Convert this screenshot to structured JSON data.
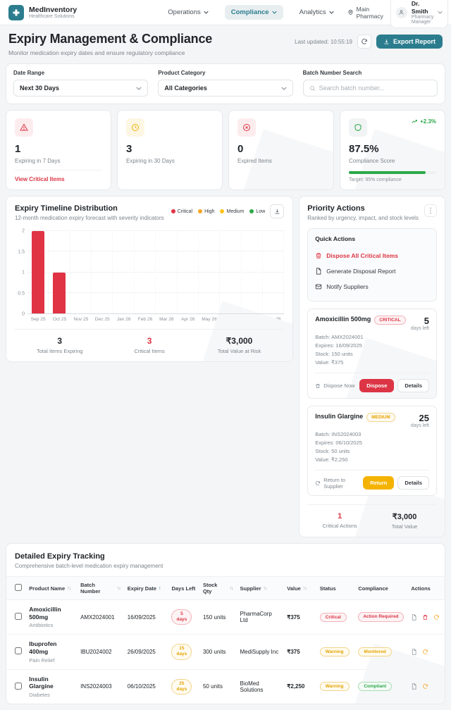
{
  "header": {
    "brand": {
      "name": "MedInventory",
      "tagline": "Healthcare Solutions"
    },
    "nav": [
      {
        "label": "Operations"
      },
      {
        "label": "Compliance"
      },
      {
        "label": "Analytics"
      }
    ],
    "location": "Main Pharmacy",
    "user": {
      "name": "Dr. Smith",
      "role": "Pharmacy Manager"
    }
  },
  "page": {
    "title": "Expiry Management & Compliance",
    "subtitle": "Monitor medication expiry dates and ensure regulatory compliance",
    "last_updated": "Last updated: 10:55:19",
    "export_label": "Export Report"
  },
  "filters": {
    "date_range": {
      "label": "Date Range",
      "value": "Next 30 Days"
    },
    "category": {
      "label": "Product Category",
      "value": "All Categories"
    },
    "batch_search": {
      "label": "Batch Number Search",
      "placeholder": "Search batch number..."
    }
  },
  "stats": [
    {
      "value": "1",
      "label": "Expiring in 7 Days",
      "icon": "warning-triangle",
      "link": "View Critical Items"
    },
    {
      "value": "3",
      "label": "Expiring in 30 Days",
      "icon": "clock"
    },
    {
      "value": "0",
      "label": "Expired Items",
      "icon": "x-circle"
    },
    {
      "value": "87.5%",
      "label": "Compliance Score",
      "icon": "shield",
      "trend": "+2.3%",
      "target": "Target: 95% compliance",
      "progress_pct": 87.5
    }
  ],
  "chart": {
    "title": "Expiry Timeline Distribution",
    "subtitle": "12-month medication expiry forecast with severity indicators",
    "legend": [
      {
        "label": "Critical",
        "color": "#e03344"
      },
      {
        "label": "High",
        "color": "#f5a623"
      },
      {
        "label": "Medium",
        "color": "#fcc419"
      },
      {
        "label": "Low",
        "color": "#2ba84a"
      }
    ],
    "totals": [
      {
        "value": "3",
        "label": "Total Items Expiring"
      },
      {
        "value": "3",
        "label": "Critical Items"
      },
      {
        "value": "₹3,000",
        "label": "Total Value at Risk"
      }
    ]
  },
  "chart_data": {
    "type": "bar",
    "title": "Expiry Timeline Distribution",
    "categories": [
      "Sep 25",
      "Oct 25",
      "Nov 25",
      "Dec 25",
      "Jan 26",
      "Feb 26",
      "Mar 26",
      "Apr 26",
      "May 26",
      "Jun 26",
      "Jul 26",
      "Aug 26"
    ],
    "series": [
      {
        "name": "Critical",
        "color": "#e03344",
        "values": [
          2,
          1,
          0,
          0,
          0,
          0,
          0,
          0,
          0,
          0,
          0,
          0
        ]
      }
    ],
    "xlabel": "",
    "ylabel": "",
    "ylim": [
      0,
      2
    ],
    "yticks": [
      0,
      0.5,
      1,
      1.5,
      2
    ],
    "grid": true,
    "legend_position": "top-right"
  },
  "priority": {
    "title": "Priority Actions",
    "subtitle": "Ranked by urgency, impact, and stock levels",
    "quick": {
      "title": "Quick Actions",
      "items": [
        {
          "label": "Dispose All Critical Items",
          "icon": "trash-icon"
        },
        {
          "label": "Generate Disposal Report",
          "icon": "document-icon"
        },
        {
          "label": "Notify Suppliers",
          "icon": "mail-icon"
        }
      ]
    },
    "items": [
      {
        "name": "Amoxicillin 500mg",
        "severity": "CRITICAL",
        "days": "5",
        "days_label": "days left",
        "batch": "Batch: AMX2024001",
        "expires": "Expires: 16/09/2025",
        "stock": "Stock: 150 units",
        "value": "Value: ₹375",
        "hint": "Dispose Now",
        "primary": "Dispose",
        "secondary": "Details"
      },
      {
        "name": "Insulin Glargine",
        "severity": "MEDIUM",
        "days": "25",
        "days_label": "days left",
        "batch": "Batch: INS2024003",
        "expires": "Expires: 06/10/2025",
        "stock": "Stock: 50 units",
        "value": "Value: ₹2,250",
        "hint": "Return to Supplier",
        "primary": "Return",
        "secondary": "Details"
      }
    ],
    "footer": [
      {
        "value": "1",
        "label": "Critical Actions"
      },
      {
        "value": "₹3,000",
        "label": "Total Value"
      }
    ]
  },
  "table": {
    "title": "Detailed Expiry Tracking",
    "subtitle": "Comprehensive batch-level medication expiry management",
    "columns": [
      "Product Name",
      "Batch Number",
      "Expiry Date",
      "Days Left",
      "Stock Qty",
      "Supplier",
      "Value",
      "Status",
      "Compliance",
      "Actions"
    ],
    "rows": [
      {
        "product": "Amoxicillin 500mg",
        "category": "Antibiotics",
        "batch": "AMX2024001",
        "expiry": "16/09/2025",
        "days": "5",
        "days_unit": "days",
        "stock": "150 units",
        "supplier": "PharmaCorp Ltd",
        "value": "₹375",
        "status": "Critical",
        "compliance": "Action Required"
      },
      {
        "product": "Ibuprofen 400mg",
        "category": "Pain Relief",
        "batch": "IBU2024002",
        "expiry": "26/09/2025",
        "days": "15",
        "days_unit": "days",
        "stock": "300 units",
        "supplier": "MediSupply Inc",
        "value": "₹375",
        "status": "Warning",
        "compliance": "Monitored"
      },
      {
        "product": "Insulin Glargine",
        "category": "Diabetes",
        "batch": "INS2024003",
        "expiry": "06/10/2025",
        "days": "25",
        "days_unit": "days",
        "stock": "50 units",
        "supplier": "BioMed Solutions",
        "value": "₹2,250",
        "status": "Warning",
        "compliance": "Compliant"
      }
    ]
  },
  "icons": {
    "kebab": "⋮",
    "sort": "↑↓",
    "sort_asc": "↑"
  }
}
